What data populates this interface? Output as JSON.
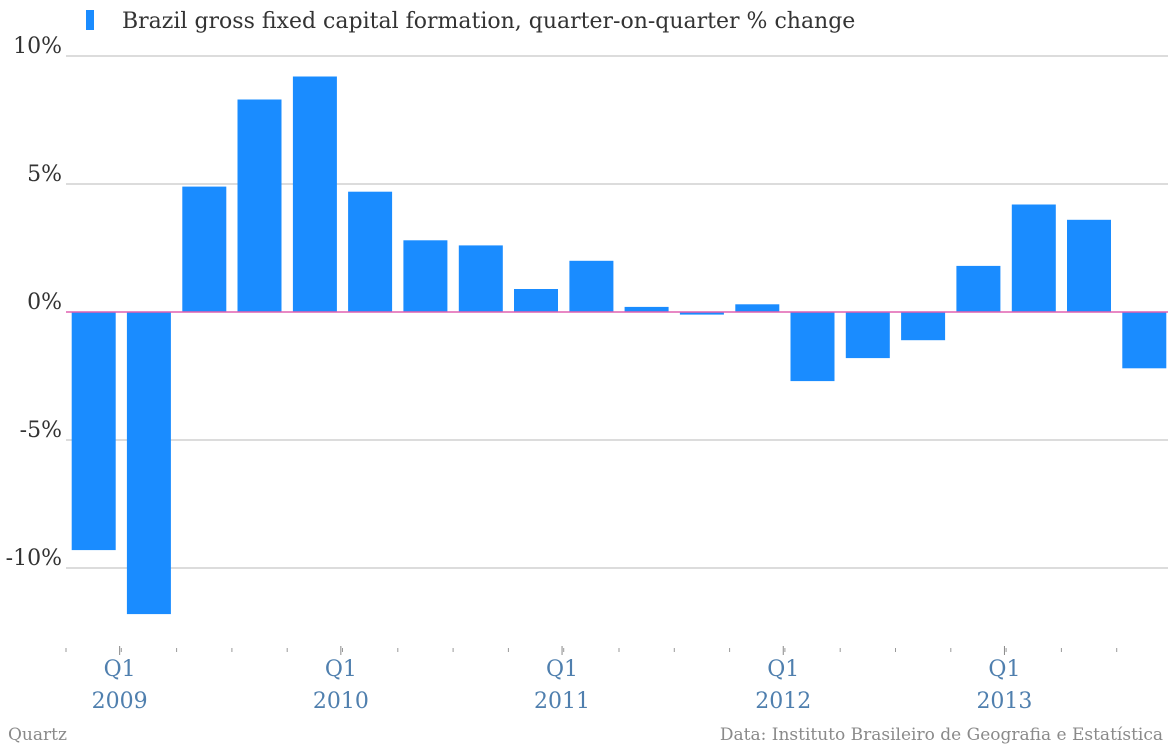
{
  "chart_data": {
    "type": "bar",
    "legend": "Brazil gross fixed capital formation, quarter-on-quarter % change",
    "legend_placement": "top-left",
    "grid": true,
    "ylim": [
      -12.5,
      10
    ],
    "yticks": [
      {
        "value": 10,
        "label": "10%"
      },
      {
        "value": 5,
        "label": "5%"
      },
      {
        "value": 0,
        "label": "0%"
      },
      {
        "value": -5,
        "label": "-5%"
      },
      {
        "value": -10,
        "label": "-10%"
      }
    ],
    "categories": [
      "Q1 2009",
      "Q2 2009",
      "Q3 2009",
      "Q4 2009",
      "Q1 2010",
      "Q2 2010",
      "Q3 2010",
      "Q4 2010",
      "Q1 2011",
      "Q2 2011",
      "Q3 2011",
      "Q4 2011",
      "Q1 2012",
      "Q2 2012",
      "Q3 2012",
      "Q4 2012",
      "Q1 2013",
      "Q2 2013",
      "Q3 2013",
      "Q4 2013"
    ],
    "values": [
      -9.3,
      -11.8,
      4.9,
      8.3,
      9.2,
      4.7,
      2.8,
      2.6,
      0.9,
      2.0,
      0.2,
      -0.1,
      0.3,
      -2.7,
      -1.8,
      -1.1,
      1.8,
      4.2,
      3.6,
      -2.2
    ],
    "x_labels": [
      {
        "quarter": "Q1",
        "year": "2009",
        "index": 1
      },
      {
        "quarter": "Q1",
        "year": "2010",
        "index": 5
      },
      {
        "quarter": "Q1",
        "year": "2011",
        "index": 9
      },
      {
        "quarter": "Q1",
        "year": "2012",
        "index": 13
      },
      {
        "quarter": "Q1",
        "year": "2013",
        "index": 17
      }
    ],
    "colors": {
      "bar": "#1a8cff",
      "zero_line": "#e060b0",
      "grid": "#b8b8b8"
    }
  },
  "footer": {
    "source_left": "Quartz",
    "source_right": "Data: Instituto Brasileiro de Geografia e Estatística"
  }
}
